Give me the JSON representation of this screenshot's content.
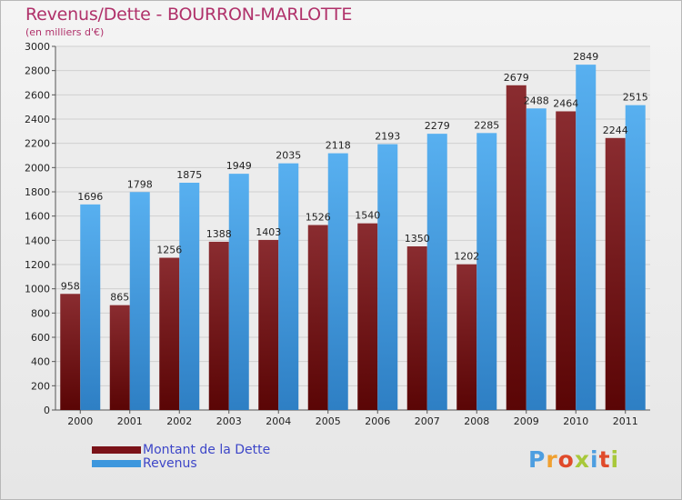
{
  "title": "Revenus/Dette - BOURRON-MARLOTTE",
  "subtitle": "(en milliers d'€)",
  "logo": {
    "text": "Proxiti",
    "letter_colors": [
      "#4d9ee0",
      "#f0a030",
      "#e04a2a",
      "#a8c83a",
      "#4d9ee0",
      "#e04a2a",
      "#a8c83a"
    ]
  },
  "legend": [
    {
      "label": "Montant de la Dette",
      "color": "#7a1218"
    },
    {
      "label": "Revenus",
      "color": "#3d97dd"
    }
  ],
  "chart_data": {
    "type": "bar",
    "title": "Revenus/Dette - BOURRON-MARLOTTE",
    "subtitle": "(en milliers d'€)",
    "categories": [
      "2000",
      "2001",
      "2002",
      "2003",
      "2004",
      "2005",
      "2006",
      "2007",
      "2008",
      "2009",
      "2010",
      "2011"
    ],
    "series": [
      {
        "name": "Montant de la Dette",
        "color": "#7a1218",
        "values": [
          958,
          865,
          1256,
          1388,
          1403,
          1526,
          1540,
          1350,
          1202,
          2679,
          2464,
          2244
        ]
      },
      {
        "name": "Revenus",
        "color": "#3d97dd",
        "values": [
          1696,
          1798,
          1875,
          1949,
          2035,
          2118,
          2193,
          2279,
          2285,
          2488,
          2849,
          2515
        ]
      }
    ],
    "ylim": [
      0,
      3000
    ],
    "yticks": [
      0,
      200,
      400,
      600,
      800,
      1000,
      1200,
      1400,
      1600,
      1800,
      2000,
      2200,
      2400,
      2600,
      2800,
      3000
    ],
    "grid": true,
    "legend_position": "bottom-left"
  }
}
